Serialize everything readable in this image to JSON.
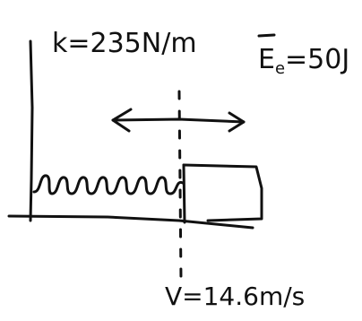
{
  "labels": {
    "spring_constant": "k=235N/m",
    "energy": {
      "symbol": "E",
      "subscript": "e",
      "value": "=50J"
    },
    "velocity": "V=14.6m/s"
  }
}
